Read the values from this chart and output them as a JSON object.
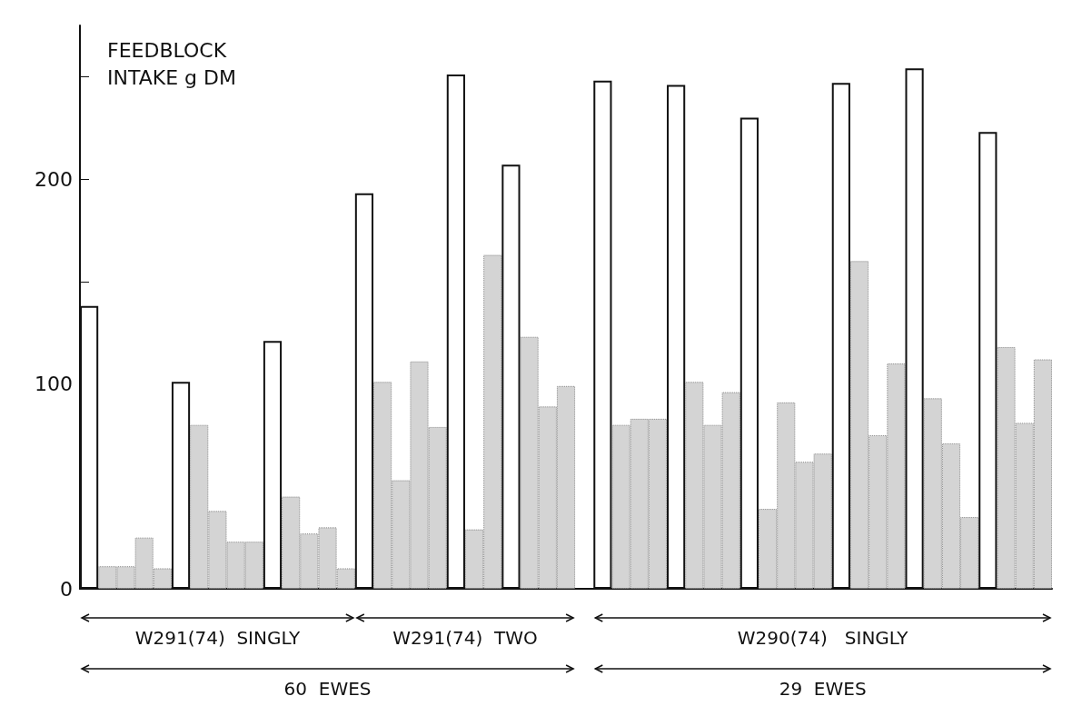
{
  "chart_data": {
    "type": "bar",
    "ylabel": "FEEDBLOCK INTAKE g DM",
    "categories": [
      null,
      null,
      null,
      null,
      null,
      null,
      null,
      null,
      null,
      null,
      null,
      null,
      null,
      null,
      null,
      null,
      null,
      null,
      null,
      null,
      null,
      null,
      null,
      null,
      null,
      null,
      null,
      null,
      null,
      null,
      null,
      null,
      null,
      null,
      null,
      null,
      null,
      null,
      null,
      null,
      null,
      null,
      null,
      null,
      null,
      null,
      null,
      null,
      null,
      null,
      null,
      null,
      null
    ],
    "values": [
      138,
      11,
      11,
      25,
      10,
      101,
      80,
      38,
      23,
      23,
      121,
      45,
      27,
      30,
      10,
      193,
      101,
      53,
      111,
      79,
      251,
      29,
      163,
      207,
      123,
      89,
      99,
      null,
      248,
      80,
      83,
      83,
      246,
      101,
      80,
      96,
      230,
      39,
      91,
      62,
      66,
      247,
      160,
      75,
      110,
      254,
      93,
      71,
      35,
      223,
      118,
      81,
      112
    ],
    "colors": [
      "#ffffff",
      "#d4d4d4",
      "#d4d4d4",
      "#d4d4d4",
      "#d4d4d4",
      "#ffffff",
      "#d4d4d4",
      "#d4d4d4",
      "#d4d4d4",
      "#d4d4d4",
      "#ffffff",
      "#d4d4d4",
      "#d4d4d4",
      "#d4d4d4",
      "#d4d4d4",
      "#ffffff",
      "#d4d4d4",
      "#d4d4d4",
      "#d4d4d4",
      "#d4d4d4",
      "#ffffff",
      "#d4d4d4",
      "#d4d4d4",
      "#ffffff",
      "#d4d4d4",
      "#d4d4d4",
      "#d4d4d4",
      "#ffffff",
      "#ffffff",
      "#d4d4d4",
      "#d4d4d4",
      "#d4d4d4",
      "#ffffff",
      "#d4d4d4",
      "#d4d4d4",
      "#d4d4d4",
      "#ffffff",
      "#d4d4d4",
      "#d4d4d4",
      "#d4d4d4",
      "#d4d4d4",
      "#ffffff",
      "#d4d4d4",
      "#d4d4d4",
      "#d4d4d4",
      "#ffffff",
      "#d4d4d4",
      "#d4d4d4",
      "#d4d4d4",
      "#ffffff",
      "#d4d4d4",
      "#d4d4d4",
      "#d4d4d4"
    ],
    "ylim": [
      0,
      275
    ],
    "yticks": [
      0,
      {
        "value": 50,
        "label": null
      },
      100,
      {
        "value": 150,
        "label": null
      },
      200,
      {
        "value": 250,
        "label": null
      }
    ],
    "grid": false,
    "annotations": [
      "W291(74)  SINGLY",
      "W291(74)  TWO",
      "W290(74)   SINGLY",
      "60  EWES",
      "29  EWES"
    ]
  }
}
